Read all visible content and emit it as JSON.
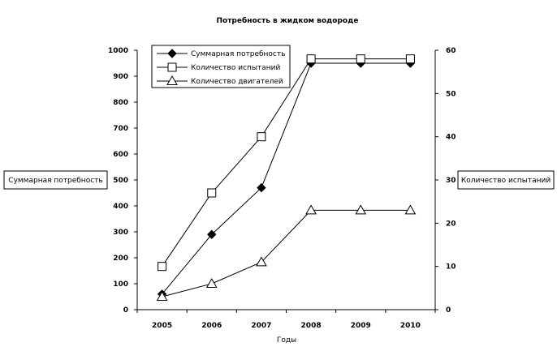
{
  "chart_data": {
    "type": "line",
    "title": "Потребность в жидком водороде",
    "xlabel": "Годы",
    "ylabel_left": "Суммарная потребность",
    "ylabel_right": "Количество испытаний",
    "categories": [
      "2005",
      "2006",
      "2007",
      "2008",
      "2009",
      "2010"
    ],
    "y_left": {
      "range": [
        0,
        1000
      ],
      "ticks": [
        "0",
        "100",
        "200",
        "300",
        "400",
        "500",
        "600",
        "700",
        "800",
        "900",
        "1000"
      ]
    },
    "y_right": {
      "range": [
        0,
        60
      ],
      "ticks": [
        "0",
        "10",
        "20",
        "30",
        "40",
        "50",
        "60"
      ]
    },
    "legend_position": "top-left",
    "grid": false,
    "series": [
      {
        "name": "Суммарная потребность",
        "axis": "left",
        "marker": "diamond-filled",
        "values": [
          60,
          290,
          470,
          950,
          950,
          950
        ]
      },
      {
        "name": "Количество испытаний",
        "axis": "right",
        "marker": "square-open",
        "values": [
          10,
          27,
          40,
          58,
          58,
          58
        ]
      },
      {
        "name": "Количество двигателей",
        "axis": "right",
        "marker": "triangle-open",
        "values": [
          3,
          6,
          11,
          23,
          23,
          23
        ]
      }
    ]
  }
}
